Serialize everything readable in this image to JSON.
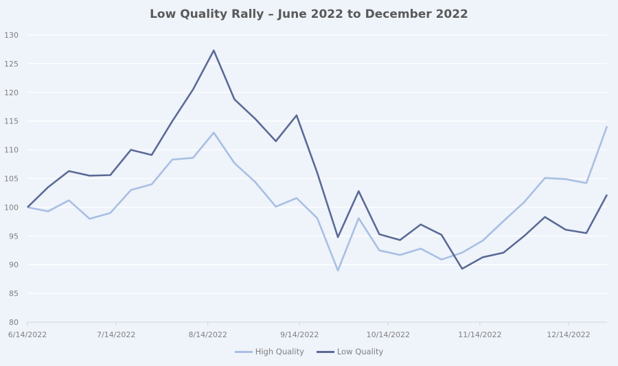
{
  "chart_data": {
    "type": "line",
    "title": "Low Quality Rally – June 2022 to December 2022",
    "xlabel": "",
    "ylabel": "",
    "ylim": [
      80,
      130
    ],
    "yticks": [
      80,
      85,
      90,
      95,
      100,
      105,
      110,
      115,
      120,
      125,
      130
    ],
    "xlim": [
      "2022-06-14",
      "2022-12-27"
    ],
    "xtick_labels": [
      "6/14/2022",
      "7/14/2022",
      "8/14/2022",
      "9/14/2022",
      "10/14/2022",
      "11/14/2022",
      "12/14/2022"
    ],
    "xtick_dates": [
      "2022-06-14",
      "2022-07-14",
      "2022-08-14",
      "2022-09-14",
      "2022-10-14",
      "2022-11-14",
      "2022-12-14"
    ],
    "grid": true,
    "legend": "bottom",
    "x": [
      "2022-06-14",
      "2022-06-21",
      "2022-06-28",
      "2022-07-05",
      "2022-07-12",
      "2022-07-19",
      "2022-07-26",
      "2022-08-02",
      "2022-08-09",
      "2022-08-16",
      "2022-08-23",
      "2022-08-30",
      "2022-09-06",
      "2022-09-13",
      "2022-09-20",
      "2022-09-27",
      "2022-10-04",
      "2022-10-11",
      "2022-10-18",
      "2022-10-25",
      "2022-11-01",
      "2022-11-08",
      "2022-11-15",
      "2022-11-22",
      "2022-11-29",
      "2022-12-06",
      "2022-12-13",
      "2022-12-20",
      "2022-12-27"
    ],
    "series": [
      {
        "name": "High Quality",
        "color": "#a7bfe3",
        "values": [
          100,
          99.3,
          101.2,
          98,
          99,
          103,
          104,
          108.3,
          108.6,
          113,
          107.7,
          104.4,
          100.1,
          101.6,
          98.1,
          89,
          98.1,
          92.5,
          91.7,
          92.8,
          90.9,
          92.1,
          94.2,
          97.6,
          100.9,
          105.1,
          104.9,
          104.2,
          114.1
        ]
      },
      {
        "name": "Low Quality",
        "color": "#5a6a96",
        "values": [
          100,
          103.5,
          106.3,
          105.5,
          105.6,
          110,
          109.1,
          115,
          120.5,
          127.3,
          118.8,
          115.4,
          111.5,
          116,
          106,
          94.8,
          102.8,
          95.3,
          94.3,
          97,
          95.2,
          89.3,
          91.3,
          92.1,
          95,
          98.3,
          96.1,
          95.5,
          102.2
        ]
      }
    ]
  }
}
